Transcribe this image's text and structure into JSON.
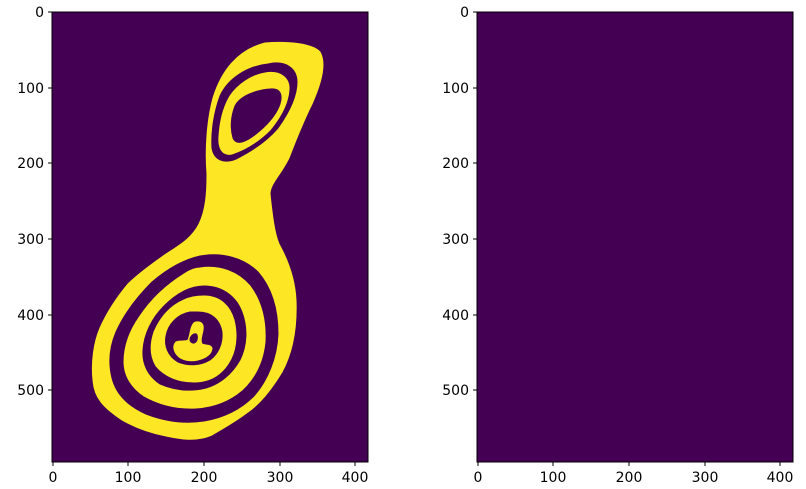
{
  "colors": {
    "background": "#440154",
    "mask": "#FDE725",
    "edge": "#26BFB8"
  },
  "panels": [
    {
      "name": "binary-mask",
      "x_ticks": [
        "0",
        "100",
        "200",
        "300",
        "400"
      ],
      "y_ticks": [
        "0",
        "100",
        "200",
        "300",
        "400",
        "500"
      ]
    },
    {
      "name": "edge-contours",
      "x_ticks": [
        "0",
        "100",
        "200",
        "300",
        "400"
      ],
      "y_ticks": [
        "0",
        "100",
        "200",
        "300",
        "400",
        "500"
      ]
    }
  ]
}
